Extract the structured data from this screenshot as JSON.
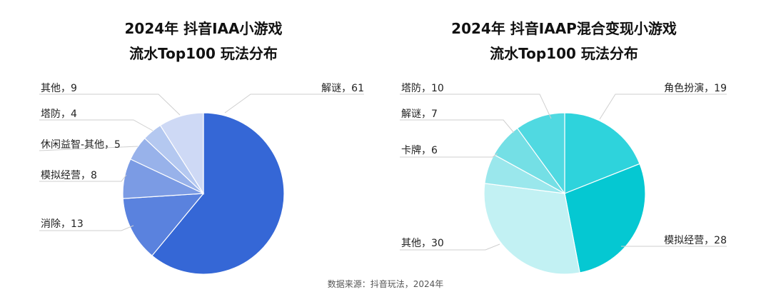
{
  "chart_data": [
    {
      "type": "pie",
      "title": [
        "2024年 抖音IAA小游戏",
        "流水Top100 玩法分布"
      ],
      "slices": [
        {
          "label": "解谜，61",
          "value": 61,
          "color": "#3567D6"
        },
        {
          "label": "消除，13",
          "value": 13,
          "color": "#5A82DE"
        },
        {
          "label": "模拟经营，8",
          "value": 8,
          "color": "#7B9BE4"
        },
        {
          "label": "休闲益智-其他，5",
          "value": 5,
          "color": "#98B2EA"
        },
        {
          "label": "塔防，4",
          "value": 4,
          "color": "#B4C8F0"
        },
        {
          "label": "其他，9",
          "value": 9,
          "color": "#CED9F5"
        }
      ]
    },
    {
      "type": "pie",
      "title": [
        "2024年 抖音IAAP混合变现小游戏",
        "流水Top100 玩法分布"
      ],
      "slices": [
        {
          "label": "角色扮演，19",
          "value": 19,
          "color": "#2ED3DC"
        },
        {
          "label": "模拟经营，28",
          "value": 28,
          "color": "#05C8D2"
        },
        {
          "label": "其他，30",
          "value": 30,
          "color": "#C2F1F3"
        },
        {
          "label": "卡牌，6",
          "value": 6,
          "color": "#9AE7EC"
        },
        {
          "label": "解谜，7",
          "value": 7,
          "color": "#74DFE5"
        },
        {
          "label": "塔防，10",
          "value": 10,
          "color": "#50D9E1"
        }
      ]
    }
  ],
  "source": "数据来源：抖音玩法，2024年"
}
